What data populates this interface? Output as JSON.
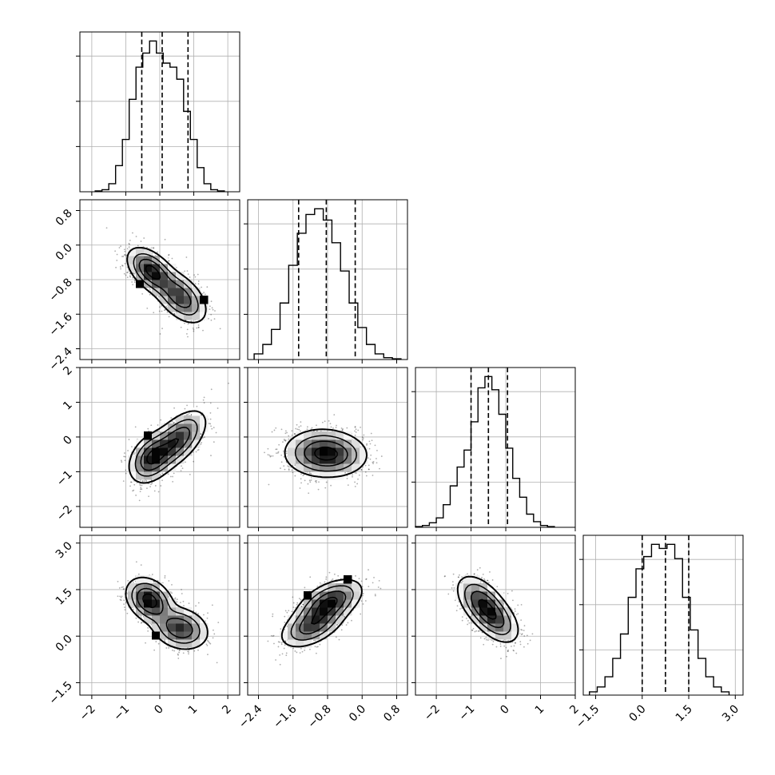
{
  "chart_data": {
    "type": "corner",
    "title": "",
    "grid": true,
    "colors": {
      "line": "#000000",
      "grid": "#b0b0b0",
      "scatter": "#000000",
      "density": "#000000"
    },
    "parameters": [
      {
        "ticks": [
          "−2",
          "−1",
          "0",
          "1",
          "2"
        ],
        "tick_values": [
          -2,
          -1,
          0,
          1,
          2
        ],
        "range": [
          -2.35,
          2.35
        ]
      },
      {
        "ticks": [
          "−2.4",
          "−1.6",
          "−0.8",
          "0.0",
          "0.8"
        ],
        "tick_values": [
          -2.4,
          -1.6,
          -0.8,
          0.0,
          0.8
        ],
        "range": [
          -2.65,
          1.05
        ]
      },
      {
        "ticks": [
          "−2",
          "−1",
          "0",
          "1",
          "2"
        ],
        "tick_values": [
          -2,
          -1,
          0,
          1,
          2
        ],
        "range": [
          -2.6,
          2.0
        ]
      },
      {
        "ticks": [
          "−1.5",
          "0.0",
          "1.5",
          "3.0"
        ],
        "tick_values": [
          -1.5,
          0.0,
          1.5,
          3.0
        ],
        "range": [
          -1.9,
          3.25
        ]
      }
    ],
    "diagonal_histograms": [
      {
        "quantiles": [
          -0.53,
          0.07,
          0.83
        ],
        "bin_edges": [
          -1.9,
          -1.7,
          -1.5,
          -1.3,
          -1.1,
          -0.9,
          -0.7,
          -0.5,
          -0.3,
          -0.1,
          0.1,
          0.3,
          0.5,
          0.7,
          0.9,
          1.1,
          1.3,
          1.5,
          1.7,
          1.9
        ],
        "counts": [
          2,
          5,
          20,
          65,
          130,
          230,
          310,
          345,
          375,
          345,
          320,
          310,
          280,
          200,
          130,
          60,
          20,
          5,
          2
        ]
      },
      {
        "quantiles": [
          -1.47,
          -0.83,
          -0.16
        ],
        "bin_edges": [
          -2.5,
          -2.3,
          -2.1,
          -1.9,
          -1.7,
          -1.5,
          -1.3,
          -1.1,
          -0.9,
          -0.7,
          -0.5,
          -0.3,
          -0.1,
          0.1,
          0.3,
          0.5,
          0.7,
          0.9
        ],
        "counts": [
          15,
          40,
          80,
          150,
          250,
          335,
          385,
          400,
          370,
          310,
          235,
          150,
          85,
          40,
          15,
          5,
          2
        ]
      },
      {
        "quantiles": [
          -1.0,
          -0.5,
          0.05
        ],
        "bin_edges": [
          -2.6,
          -2.4,
          -2.2,
          -2.0,
          -1.8,
          -1.6,
          -1.4,
          -1.2,
          -1.0,
          -0.8,
          -0.6,
          -0.4,
          -0.2,
          0.0,
          0.2,
          0.4,
          0.6,
          0.8,
          1.0,
          1.2,
          1.4
        ],
        "counts": [
          2,
          5,
          12,
          25,
          60,
          110,
          160,
          205,
          280,
          370,
          400,
          365,
          300,
          210,
          130,
          80,
          35,
          15,
          5,
          2
        ]
      },
      {
        "quantiles": [
          0.0,
          0.75,
          1.5
        ],
        "bin_edges": [
          -1.7,
          -1.45,
          -1.2,
          -0.95,
          -0.7,
          -0.45,
          -0.2,
          0.05,
          0.3,
          0.55,
          0.8,
          1.05,
          1.3,
          1.55,
          1.8,
          2.05,
          2.3,
          2.55,
          2.8
        ],
        "counts": [
          8,
          20,
          45,
          90,
          150,
          240,
          310,
          340,
          370,
          360,
          370,
          335,
          240,
          160,
          90,
          45,
          20,
          8
        ]
      }
    ],
    "pair_panels": [
      {
        "x_param": 0,
        "y_param": 1,
        "modes": [
          [
            -0.25,
            -0.6,
            0.34,
            0.26,
            -0.5,
            0.55
          ],
          [
            0.6,
            -1.2,
            0.38,
            0.3,
            -0.5,
            0.45
          ]
        ]
      },
      {
        "x_param": 0,
        "y_param": 2,
        "modes": [
          [
            -0.25,
            -0.6,
            0.32,
            0.35,
            0.35,
            0.5
          ],
          [
            0.5,
            -0.1,
            0.42,
            0.42,
            0.6,
            0.5
          ]
        ]
      },
      {
        "x_param": 1,
        "y_param": 2,
        "modes": [
          [
            -0.95,
            -0.45,
            0.42,
            0.33,
            0.0,
            0.7
          ],
          [
            -0.55,
            -0.55,
            0.38,
            0.3,
            0.0,
            0.3
          ]
        ]
      },
      {
        "x_param": 0,
        "y_param": 3,
        "modes": [
          [
            -0.3,
            1.15,
            0.33,
            0.35,
            -0.3,
            0.55
          ],
          [
            0.6,
            0.25,
            0.4,
            0.33,
            -0.2,
            0.45
          ]
        ]
      },
      {
        "x_param": 1,
        "y_param": 3,
        "modes": [
          [
            -0.75,
            1.1,
            0.36,
            0.35,
            0.5,
            0.55
          ],
          [
            -1.15,
            0.35,
            0.36,
            0.35,
            0.5,
            0.45
          ]
        ]
      },
      {
        "x_param": 2,
        "y_param": 3,
        "modes": [
          [
            -0.7,
            1.1,
            0.35,
            0.42,
            -0.5,
            0.55
          ],
          [
            -0.3,
            0.55,
            0.35,
            0.4,
            -0.5,
            0.45
          ]
        ]
      }
    ]
  }
}
